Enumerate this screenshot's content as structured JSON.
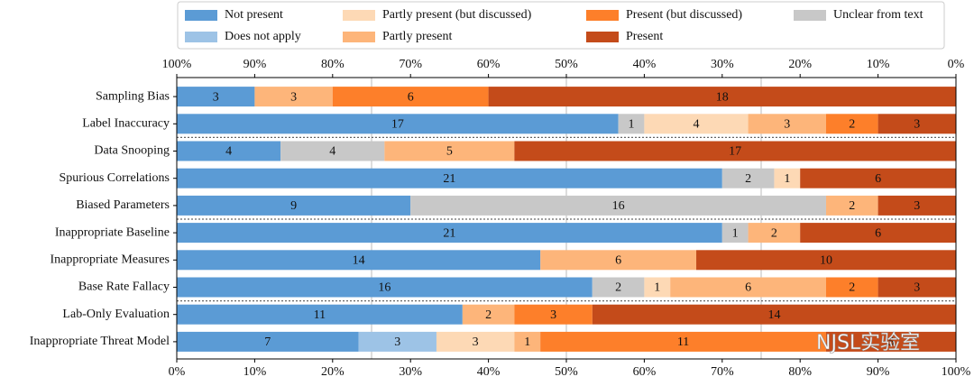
{
  "chart_data": {
    "type": "stacked_barh",
    "categories": [
      "Sampling Bias",
      "Label Inaccuracy",
      "Data Snooping",
      "Spurious Correlations",
      "Biased Parameters",
      "Inappropriate Baseline",
      "Inappropriate Measures",
      "Base Rate Fallacy",
      "Lab-Only Evaluation",
      "Inappropriate Threat Model"
    ],
    "series": [
      {
        "name": "Not present",
        "color": "#5b9bd5",
        "values": [
          10,
          56.67,
          13.33,
          70,
          30,
          70,
          46.67,
          53.33,
          36.67,
          23.33
        ],
        "value_labels": [
          "3",
          "17",
          "4",
          "21",
          "9",
          "21",
          "14",
          "16",
          "11",
          "7"
        ]
      },
      {
        "name": "Does not apply",
        "color": "#9dc3e6",
        "values": [
          0,
          0,
          0,
          0,
          0,
          0,
          0,
          0,
          0,
          10
        ],
        "value_labels": [
          null,
          null,
          null,
          null,
          null,
          null,
          null,
          null,
          null,
          "3"
        ]
      },
      {
        "name": "Unclear from text",
        "color": "#c8c8c8",
        "values": [
          0,
          3.33,
          13.33,
          6.67,
          53.33,
          3.33,
          0,
          6.67,
          0,
          0
        ],
        "value_labels": [
          null,
          "1",
          "4",
          "2",
          "16",
          "1",
          null,
          "2",
          null,
          null
        ]
      },
      {
        "name": "Partly present (but discussed)",
        "color": "#fdd9b5",
        "values": [
          0,
          13.33,
          0,
          3.33,
          0,
          0,
          0,
          3.33,
          0,
          10
        ],
        "value_labels": [
          null,
          "4",
          null,
          "1",
          null,
          null,
          null,
          "1",
          null,
          "3"
        ]
      },
      {
        "name": "Partly present",
        "color": "#fdb57a",
        "values": [
          10,
          10,
          16.67,
          0,
          6.67,
          6.67,
          20,
          20,
          6.67,
          3.33
        ],
        "value_labels": [
          "3",
          "3",
          "5",
          null,
          "2",
          "2",
          "6",
          "6",
          "2",
          "1"
        ]
      },
      {
        "name": "Present (but discussed)",
        "color": "#fd7f2a",
        "values": [
          20,
          6.67,
          0,
          0,
          0,
          0,
          0,
          6.67,
          10,
          36.67
        ],
        "value_labels": [
          "6",
          "2",
          null,
          null,
          null,
          null,
          null,
          "2",
          "3",
          "11"
        ]
      },
      {
        "name": "Present",
        "color": "#c44b1a",
        "values": [
          60,
          10,
          56.67,
          20,
          10,
          20,
          33.33,
          10,
          46.67,
          16.67
        ],
        "value_labels": [
          "18",
          "3",
          "17",
          "6",
          "3",
          "6",
          "10",
          "3",
          "14",
          "5"
        ]
      }
    ],
    "xlim": [
      0,
      100
    ],
    "xticks": [
      {
        "value": 0,
        "label": "0%"
      },
      {
        "value": 10,
        "label": "10%"
      },
      {
        "value": 20,
        "label": "20%"
      },
      {
        "value": 30,
        "label": "30%"
      },
      {
        "value": 40,
        "label": "40%"
      },
      {
        "value": 50,
        "label": "50%"
      },
      {
        "value": 60,
        "label": "60%"
      },
      {
        "value": 70,
        "label": "70%"
      },
      {
        "value": 80,
        "label": "80%"
      },
      {
        "value": 90,
        "label": "90%"
      },
      {
        "value": 100,
        "label": "100%"
      }
    ],
    "x2lim": [
      100,
      0
    ],
    "x2ticks": [
      {
        "value": 100,
        "label": "100%"
      },
      {
        "value": 90,
        "label": "90%"
      },
      {
        "value": 80,
        "label": "80%"
      },
      {
        "value": 70,
        "label": "70%"
      },
      {
        "value": 60,
        "label": "60%"
      },
      {
        "value": 50,
        "label": "50%"
      },
      {
        "value": 40,
        "label": "40%"
      },
      {
        "value": 30,
        "label": "30%"
      },
      {
        "value": 20,
        "label": "20%"
      },
      {
        "value": 10,
        "label": "10%"
      },
      {
        "value": 0,
        "label": "0%"
      }
    ],
    "grid_x": [
      25,
      50,
      75
    ],
    "legend": "top",
    "watermark": "NJSL实验室"
  }
}
